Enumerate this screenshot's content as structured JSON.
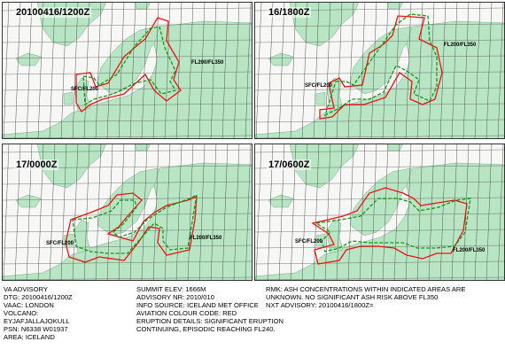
{
  "panels": [
    {
      "title": "20100416/1200Z",
      "lbl_sfc": "SFC/FL200",
      "lbl_fl": "FL200/FL350"
    },
    {
      "title": "16/1800Z",
      "lbl_sfc": "SFC/FL200",
      "lbl_fl": "FL200/FL350"
    },
    {
      "title": "17/0000Z",
      "lbl_sfc": "SFC/FL200",
      "lbl_fl": "FL200/FL350"
    },
    {
      "title": "17/0600Z",
      "lbl_sfc": "SFC/FL200",
      "lbl_fl": "FL200/FL350"
    }
  ],
  "colors": {
    "land": "#b8e6c4",
    "sea": "#f7f7f5",
    "grid": "#555555",
    "sfc_contour": "#ee1111",
    "fl_contour": "#119911"
  },
  "advisory": {
    "col1": [
      "VA ADVISORY",
      "DTG:  20100416/1200Z",
      "VAAC:  LONDON",
      "VOLCANO:",
      "EYJAFJALLAJOKULL",
      "PSN:  N6338 W01937",
      "AREA:  ICELAND"
    ],
    "col2": [
      "SUMMIT ELEV:  1666M",
      "ADVISORY NR:  2010/010",
      "INFO SOURCE:  ICELAND MET OFFICE",
      "AVIATION COLOUR CODE:  RED",
      "ERUPTION DETAILS:  SIGNIFICANT ERUPTION",
      "CONTINUING, EPISODIC REACHING FL240."
    ],
    "col3": [
      "RMK:  ASH CONCENTRATIONS WITHIN INDICATED AREAS ARE",
      "UNKNOWN. NO SIGNIFICANT ASH RISK ABOVE FL350",
      "NXT ADVISORY:  20100416/1800Z="
    ]
  }
}
